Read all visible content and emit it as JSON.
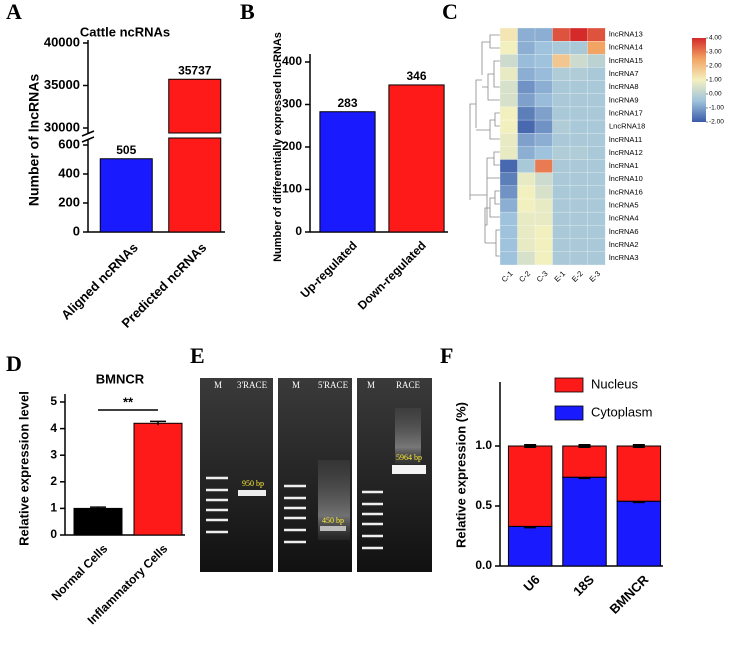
{
  "chart_data": [
    {
      "type": "broken-bar",
      "label": "A",
      "title": "Cattle ncRNAs",
      "ylabel": "Number of lncRNAs",
      "categories": [
        "Aligned ncRNAs",
        "Predicted ncRNAs"
      ],
      "values": [
        505,
        35737
      ],
      "colors": [
        "#1a1aff",
        "#ff1a1a"
      ],
      "segments": [
        {
          "ylim": [
            0,
            600
          ],
          "yticks": [
            0,
            200,
            400,
            600
          ]
        },
        {
          "ylim": [
            30000,
            40000
          ],
          "yticks": [
            30000,
            35000,
            40000
          ]
        }
      ]
    },
    {
      "type": "bar",
      "label": "B",
      "ylabel": "Number of differentially expressed lncRNAs",
      "categories": [
        "Up-regulated",
        "Down-regulated"
      ],
      "values": [
        283,
        346
      ],
      "colors": [
        "#1a1aff",
        "#ff1a1a"
      ],
      "ylim": [
        0,
        400
      ],
      "yticks": [
        0,
        100,
        200,
        300,
        400
      ]
    },
    {
      "type": "heatmap",
      "label": "C",
      "rows": [
        "lncRNA13",
        "lncRNA14",
        "lncRNA15",
        "lncRNA7",
        "lncRNA8",
        "lncRNA9",
        "lncRNA17",
        "LncRNA18",
        "lncRNA11",
        "lncRNA12",
        "lncRNA1",
        "lncRNA10",
        "lncRNA16",
        "lncRNA5",
        "lncRNA4",
        "lncRNA6",
        "lncRNA2",
        "lncRNA3"
      ],
      "columns": [
        "C-1",
        "C-2",
        "C-3",
        "E-1",
        "E-2",
        "E-3"
      ],
      "values": [
        [
          1.2,
          -0.8,
          -0.8,
          3.5,
          4.0,
          3.5
        ],
        [
          1.0,
          -0.8,
          -0.5,
          -0.3,
          -0.3,
          2.5
        ],
        [
          0.3,
          -0.6,
          -0.5,
          1.8,
          0.3,
          0.0
        ],
        [
          0.8,
          -0.8,
          -0.6,
          -0.2,
          -0.2,
          -0.3
        ],
        [
          0.5,
          -1.2,
          -0.8,
          -0.3,
          -0.3,
          -0.3
        ],
        [
          0.5,
          -1.0,
          -0.6,
          -0.3,
          -0.3,
          -0.3
        ],
        [
          1.0,
          -1.5,
          -1.0,
          -0.3,
          -0.3,
          -0.3
        ],
        [
          1.0,
          -1.8,
          -1.2,
          -0.2,
          -0.3,
          -0.3
        ],
        [
          0.8,
          -1.0,
          -0.8,
          -0.3,
          -0.3,
          -0.3
        ],
        [
          0.8,
          -0.8,
          -0.5,
          -0.2,
          -0.2,
          -0.3
        ],
        [
          -1.8,
          -0.3,
          3.0,
          -0.3,
          -0.3,
          -0.3
        ],
        [
          -1.5,
          0.8,
          0.3,
          -0.3,
          -0.3,
          -0.3
        ],
        [
          -1.2,
          1.0,
          0.5,
          -0.3,
          -0.3,
          -0.3
        ],
        [
          -0.8,
          1.0,
          0.8,
          -0.3,
          -0.3,
          -0.3
        ],
        [
          -0.5,
          0.8,
          0.8,
          -0.3,
          -0.3,
          -0.3
        ],
        [
          -0.5,
          0.8,
          1.0,
          -0.3,
          -0.3,
          -0.3
        ],
        [
          -0.5,
          0.8,
          1.0,
          -0.3,
          -0.3,
          -0.3
        ],
        [
          -0.5,
          0.5,
          1.0,
          -0.3,
          -0.3,
          -0.3
        ]
      ],
      "zlim": [
        -2,
        4
      ],
      "colors": [
        "#3b5ba8",
        "#9fc3dc",
        "#f3f0c0",
        "#f2a464",
        "#d42a2a"
      ],
      "zticks": [
        {
          "value": 4,
          "label": "4.00"
        },
        {
          "value": 3,
          "label": "3.00"
        },
        {
          "value": 2,
          "label": "2.00"
        },
        {
          "value": 1,
          "label": "1.00"
        },
        {
          "value": 0,
          "label": "0.00"
        },
        {
          "value": -1,
          "label": "-1.00"
        },
        {
          "value": -2,
          "label": "-2.00"
        }
      ]
    },
    {
      "type": "bar",
      "label": "D",
      "title": "BMNCR",
      "ylabel": "Relative expression level",
      "categories": [
        "Normal Cells",
        "Inflammatory Cells"
      ],
      "values": [
        1.0,
        4.2
      ],
      "errors": [
        0.05,
        0.07
      ],
      "colors": [
        "#000000",
        "#ff1a1a"
      ],
      "ylim": [
        0,
        5
      ],
      "yticks": [
        0,
        1,
        2,
        3,
        4,
        5
      ],
      "annotation": "**"
    },
    {
      "type": "stacked-bar",
      "label": "F",
      "ylabel": "Relative expression (%)",
      "categories": [
        "U6",
        "18S",
        "BMNCR"
      ],
      "series": [
        {
          "name": "Cytoplasm",
          "color": "#1a1aff",
          "values": [
            0.33,
            0.74,
            0.54
          ],
          "errors": [
            0.01,
            0.01,
            0.01
          ]
        },
        {
          "name": "Nucleus",
          "color": "#ff1a1a",
          "values": [
            0.67,
            0.26,
            0.46
          ],
          "errors": [
            0.01,
            0.01,
            0.01
          ]
        }
      ],
      "ylim": [
        0,
        1.5
      ],
      "yticks": [
        {
          "value": 0,
          "label": "0.0"
        },
        {
          "value": 0.5,
          "label": "0.5"
        },
        {
          "value": 1,
          "label": "1.0"
        }
      ]
    }
  ],
  "gel": {
    "label": "E",
    "lanes": [
      {
        "marker": "M",
        "name": "3'RACE",
        "band": "950 bp"
      },
      {
        "marker": "M",
        "name": "5'RACE",
        "band": "450 bp"
      },
      {
        "marker": "M",
        "name": "RACE",
        "band": "5964 bp"
      }
    ]
  }
}
